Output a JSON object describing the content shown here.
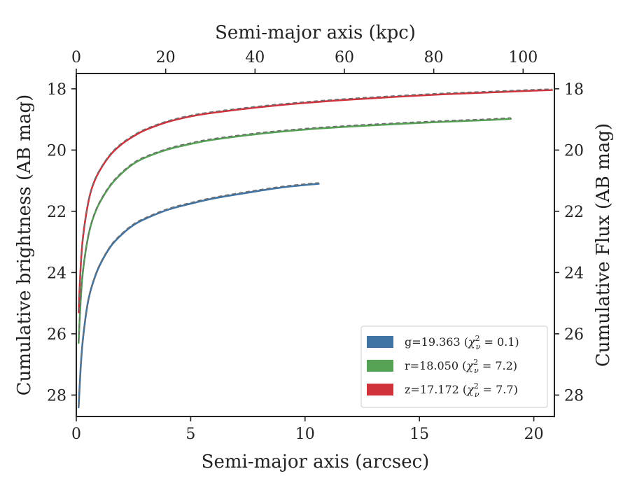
{
  "chart_data": {
    "type": "line",
    "xlabel": "Semi-major axis (arcsec)",
    "ylabel": "Cumulative brightness (AB mag)",
    "x2label": "Semi-major axis (kpc)",
    "y2label": "Cumulative Flux (AB mag)",
    "xlim": [
      0,
      20.9
    ],
    "ylim": [
      28.7,
      17.5
    ],
    "x2lim": [
      0,
      107
    ],
    "y_inverted": true,
    "xticks": [
      0,
      5,
      10,
      15,
      20
    ],
    "yticks": [
      18,
      20,
      22,
      24,
      26,
      28
    ],
    "x2ticks": [
      0,
      20,
      40,
      60,
      80,
      100
    ],
    "grid": false,
    "legend_position": "lower-right",
    "series": [
      {
        "name": "g=19.363 (χ²ν = 0.1)",
        "legend_main": "g=19.363 (",
        "legend_chi": "χ",
        "legend_sup": "2",
        "legend_sub": "ν",
        "legend_tail": " = 0.1)",
        "color": "#3f73a4",
        "x": [
          0.1,
          0.2,
          0.3,
          0.5,
          0.7,
          1.0,
          1.5,
          2.0,
          2.5,
          3.0,
          4.0,
          5.0,
          6.0,
          7.0,
          8.0,
          9.0,
          10.0,
          10.6
        ],
        "y": [
          28.4,
          27.0,
          26.1,
          25.0,
          24.4,
          23.8,
          23.15,
          22.75,
          22.45,
          22.25,
          21.95,
          21.75,
          21.58,
          21.45,
          21.33,
          21.22,
          21.14,
          21.1
        ]
      },
      {
        "name": "r=18.050 (χ²ν = 7.2)",
        "legend_main": "r=18.050 (",
        "legend_chi": "χ",
        "legend_sup": "2",
        "legend_sub": "ν",
        "legend_tail": " = 7.2)",
        "color": "#56a255",
        "x": [
          0.1,
          0.2,
          0.3,
          0.5,
          0.7,
          1.0,
          1.5,
          2.0,
          2.5,
          3.0,
          4.0,
          5.0,
          6.0,
          8.0,
          10.0,
          12.0,
          14.0,
          16.0,
          18.0,
          19.0
        ],
        "y": [
          26.3,
          24.8,
          23.9,
          22.9,
          22.3,
          21.75,
          21.15,
          20.75,
          20.45,
          20.25,
          19.98,
          19.8,
          19.66,
          19.47,
          19.33,
          19.23,
          19.15,
          19.08,
          19.02,
          18.98
        ]
      },
      {
        "name": "z=17.172 (χ²ν = 7.7)",
        "legend_main": "z=17.172 (",
        "legend_chi": "χ",
        "legend_sup": "2",
        "legend_sub": "ν",
        "legend_tail": " = 7.7)",
        "color": "#d0313b",
        "x": [
          0.1,
          0.2,
          0.3,
          0.5,
          0.7,
          1.0,
          1.5,
          2.0,
          2.5,
          3.0,
          4.0,
          5.0,
          6.0,
          8.0,
          10.0,
          12.0,
          14.0,
          16.0,
          18.0,
          20.0,
          20.8
        ],
        "y": [
          25.3,
          23.7,
          22.8,
          21.8,
          21.2,
          20.7,
          20.15,
          19.8,
          19.55,
          19.35,
          19.08,
          18.9,
          18.78,
          18.6,
          18.46,
          18.35,
          18.26,
          18.18,
          18.12,
          18.06,
          18.04
        ]
      }
    ]
  }
}
